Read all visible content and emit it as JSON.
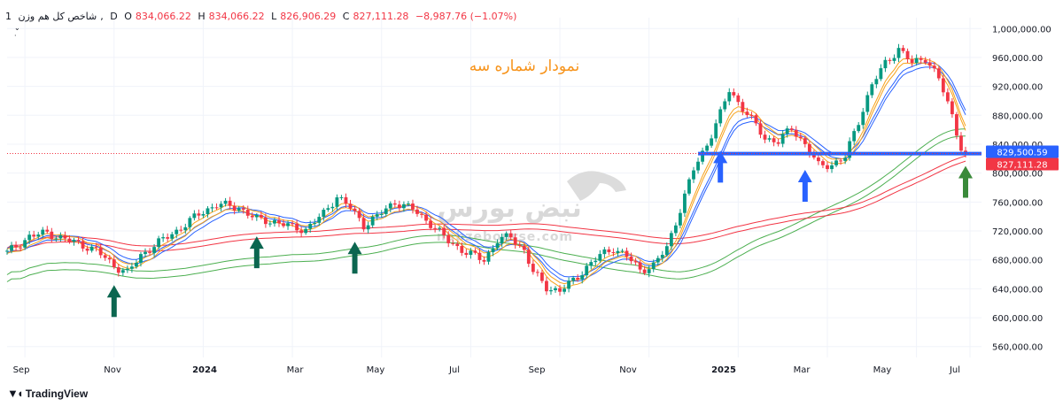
{
  "header": {
    "interval": "1",
    "symbol": "شاخص کل هم وزن",
    "timeframe": "D",
    "open_label": "O",
    "open": "834,066.22",
    "high_label": "H",
    "high": "834,066.22",
    "low_label": "L",
    "low": "826,906.29",
    "close_label": "C",
    "close": "827,111.28",
    "change": "−8,987.76 (−1.07%)"
  },
  "annotation_title": "نمودار شماره سه",
  "watermark": {
    "brand": "نبض بورس",
    "site": "nabzebourse.com"
  },
  "branding": {
    "tradingview": "TradingView"
  },
  "colors": {
    "up": "#089981",
    "down": "#f23645",
    "ma_orange": "#f7a21b",
    "ma_blue": "#2962ff",
    "ma_green": "#4caf50",
    "ma_red": "#f23645",
    "support_line": "#2962ff",
    "arrow_dark_green": "#0b6650",
    "arrow_blue": "#2962ff",
    "arrow_green": "#3a8a3a",
    "title_orange": "#f7931a"
  },
  "chart_data": {
    "type": "candlestick",
    "y_axis_labels": [
      "1,000,000.00",
      "960,000.00",
      "920,000.00",
      "880,000.00",
      "840,000.00",
      "800,000.00",
      "760,000.00",
      "720,000.00",
      "680,000.00",
      "640,000.00",
      "600,000.00",
      "560,000.00"
    ],
    "ylim": [
      545000,
      1015000
    ],
    "x_axis_labels": [
      "Sep",
      "Nov",
      "2024",
      "Mar",
      "May",
      "Jul",
      "Sep",
      "Nov",
      "2025",
      "Mar",
      "May",
      "Jul"
    ],
    "x_axis_bold": [
      "2024",
      "2025"
    ],
    "price_tags": [
      {
        "label": "829,500.59",
        "value": 829500.59,
        "color": "#2962ff"
      },
      {
        "label": "827,111.28",
        "value": 827111.28,
        "color": "#f23645"
      }
    ],
    "support_level": 827000,
    "last_price": 827111.28,
    "close_path": [
      [
        0,
        690000
      ],
      [
        5,
        712000
      ],
      [
        9,
        718000
      ],
      [
        12,
        710000
      ],
      [
        16,
        703000
      ],
      [
        20,
        693000
      ],
      [
        24,
        672000
      ],
      [
        27,
        662000
      ],
      [
        30,
        686000
      ],
      [
        33,
        700000
      ],
      [
        38,
        720000
      ],
      [
        43,
        743000
      ],
      [
        47,
        757000
      ],
      [
        52,
        752000
      ],
      [
        56,
        736000
      ],
      [
        60,
        733000
      ],
      [
        64,
        725000
      ],
      [
        67,
        722000
      ],
      [
        71,
        744000
      ],
      [
        74,
        768000
      ],
      [
        77,
        752000
      ],
      [
        80,
        728000
      ],
      [
        83,
        740000
      ],
      [
        87,
        760000
      ],
      [
        91,
        750000
      ],
      [
        95,
        730000
      ],
      [
        99,
        706000
      ],
      [
        103,
        690000
      ],
      [
        107,
        680000
      ],
      [
        110,
        707000
      ],
      [
        113,
        712000
      ],
      [
        116,
        693000
      ],
      [
        118,
        663000
      ],
      [
        121,
        642000
      ],
      [
        124,
        637000
      ],
      [
        127,
        651000
      ],
      [
        130,
        670000
      ],
      [
        133,
        686000
      ],
      [
        136,
        696000
      ],
      [
        139,
        685000
      ],
      [
        142,
        666000
      ],
      [
        145,
        672000
      ],
      [
        148,
        697000
      ],
      [
        151,
        750000
      ],
      [
        154,
        805000
      ],
      [
        157,
        840000
      ],
      [
        160,
        882000
      ],
      [
        162,
        915000
      ],
      [
        164,
        898000
      ],
      [
        167,
        874000
      ],
      [
        170,
        848000
      ],
      [
        173,
        844000
      ],
      [
        176,
        862000
      ],
      [
        179,
        840000
      ],
      [
        182,
        810000
      ],
      [
        185,
        812000
      ],
      [
        188,
        822000
      ],
      [
        191,
        872000
      ],
      [
        194,
        922000
      ],
      [
        197,
        952000
      ],
      [
        200,
        972000
      ],
      [
        203,
        952000
      ],
      [
        206,
        960000
      ],
      [
        209,
        930000
      ],
      [
        212,
        880000
      ],
      [
        214,
        835000
      ],
      [
        215,
        827111
      ]
    ],
    "moving_averages": [
      {
        "name": "",
        "color": "#f7a21b"
      },
      {
        "name": "",
        "color": "#2962ff"
      },
      {
        "name": "",
        "color": "#4caf50"
      },
      {
        "name": "",
        "color": "#f23645"
      }
    ],
    "arrows": [
      {
        "x_label": "Nov",
        "bar": 24,
        "direction": "up",
        "color": "dark_green"
      },
      {
        "x_label": "2024",
        "bar": 56,
        "direction": "up",
        "color": "dark_green"
      },
      {
        "x_label": "Mar",
        "bar": 78,
        "direction": "up",
        "color": "dark_green"
      },
      {
        "x_label": "2025",
        "bar": 160,
        "direction": "up",
        "color": "blue"
      },
      {
        "x_label": "Mar",
        "bar": 179,
        "direction": "up",
        "color": "blue"
      },
      {
        "x_label": "Jul",
        "bar": 215,
        "direction": "up",
        "color": "green"
      }
    ]
  }
}
